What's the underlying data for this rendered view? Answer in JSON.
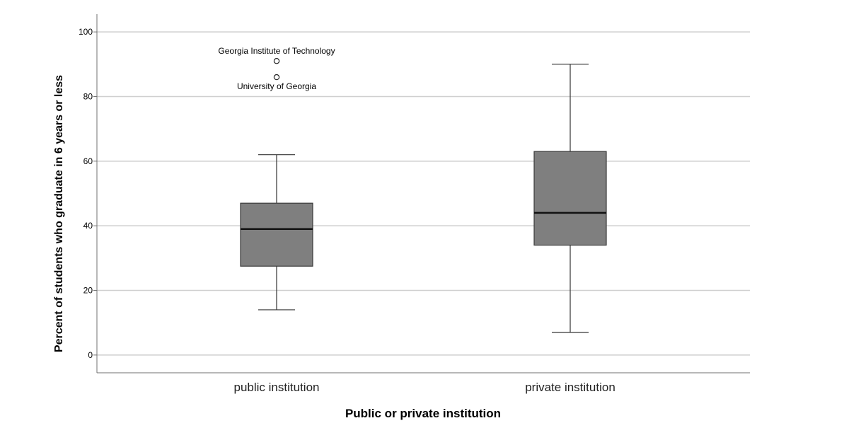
{
  "chart_data": {
    "type": "boxplot",
    "xlabel": "Public or private institution",
    "ylabel": "Percent of students who graduate in 6 years or less",
    "ylim": [
      -5.5,
      105.5
    ],
    "yticks": [
      0,
      20,
      40,
      60,
      80,
      100
    ],
    "grid": true,
    "categories": [
      "public institution",
      "private institution"
    ],
    "boxes": [
      {
        "category": "public institution",
        "whisker_low": 14,
        "q1": 27.5,
        "median": 39,
        "q3": 47,
        "whisker_high": 62,
        "outliers": [
          {
            "value": 91,
            "label": "Georgia Institute of Technology",
            "label_position": "above"
          },
          {
            "value": 86,
            "label": "University of Georgia",
            "label_position": "below"
          }
        ]
      },
      {
        "category": "private institution",
        "whisker_low": 7,
        "q1": 34,
        "median": 44,
        "q3": 63,
        "whisker_high": 90,
        "outliers": []
      }
    ],
    "colors": {
      "box_fill": "#7f7f7f",
      "box_stroke": "#3a3a3a",
      "grid": "#cfcfcf",
      "axis": "#707070",
      "text": "#000000"
    }
  }
}
